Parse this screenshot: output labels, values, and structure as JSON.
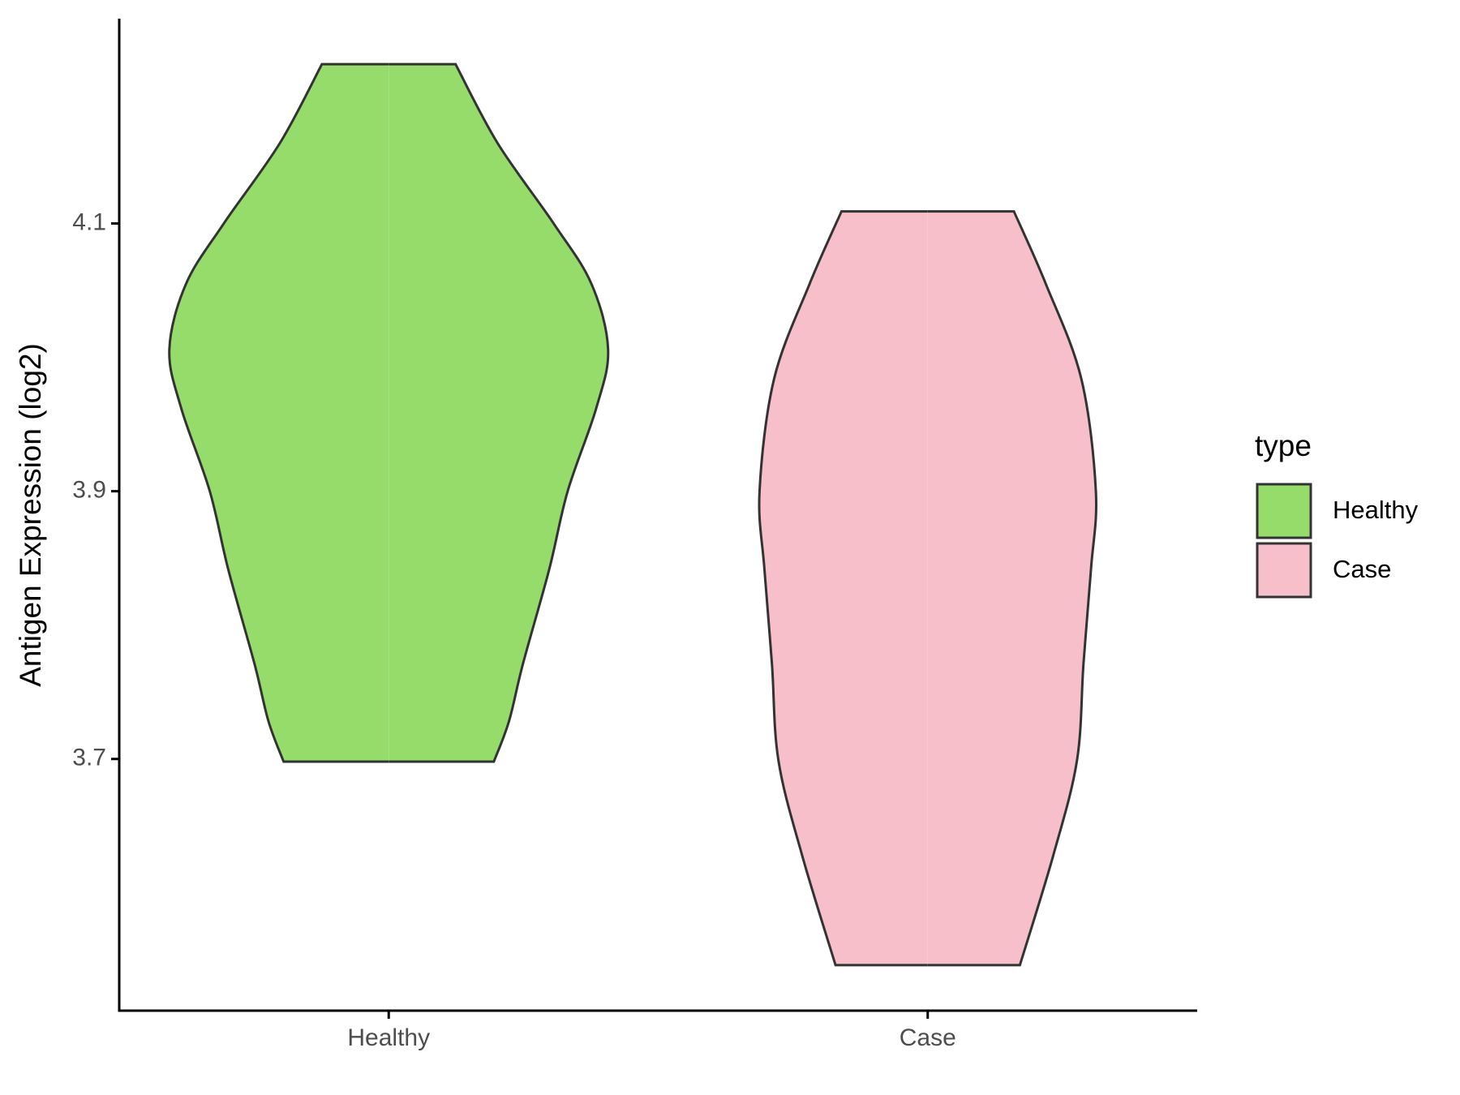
{
  "chart_data": {
    "type": "violin",
    "y_label": "Antigen Expression (log2)",
    "categories": [
      "Healthy",
      "Case"
    ],
    "legend_title": "type",
    "legend_position": "right",
    "ylim": [
      3.512,
      4.253
    ],
    "yticks": [
      3.7,
      3.9,
      4.1
    ],
    "grid": false,
    "series": [
      {
        "name": "Healthy",
        "color": "#95dc6a",
        "y": [
          4.219,
          4.16,
          4.1,
          4.055,
          4.006,
          3.962,
          3.9,
          3.842,
          3.771,
          3.728,
          3.698
        ],
        "half_width": [
          0.124,
          0.202,
          0.306,
          0.376,
          0.407,
          0.385,
          0.332,
          0.298,
          0.249,
          0.223,
          0.195
        ]
      },
      {
        "name": "Case",
        "color": "#f7bfca",
        "y": [
          4.109,
          4.055,
          3.984,
          3.9,
          3.842,
          3.771,
          3.699,
          3.628,
          3.546
        ],
        "half_width": [
          0.16,
          0.219,
          0.285,
          0.312,
          0.303,
          0.289,
          0.277,
          0.233,
          0.171
        ]
      }
    ]
  }
}
